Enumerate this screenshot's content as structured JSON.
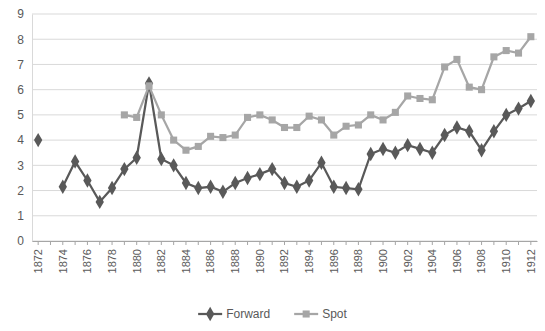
{
  "chart_data": {
    "type": "line",
    "categories": [
      "1872",
      null,
      "1874",
      null,
      "1876",
      null,
      "1878",
      null,
      "1880",
      null,
      "1882",
      null,
      "1884",
      null,
      "1886",
      null,
      "1888",
      null,
      "1890",
      null,
      "1892",
      null,
      "1894",
      null,
      "1896",
      null,
      "1898",
      null,
      "1900",
      null,
      "1902",
      null,
      "1904",
      null,
      "1906",
      null,
      "1908",
      null,
      "1910",
      null,
      "1912"
    ],
    "series": [
      {
        "name": "Forward",
        "color": "#595959",
        "marker": "diamond",
        "values": [
          4.0,
          null,
          2.15,
          3.15,
          2.4,
          1.55,
          2.1,
          2.85,
          3.3,
          6.25,
          3.25,
          3.0,
          2.3,
          2.1,
          2.15,
          1.95,
          2.3,
          2.5,
          2.65,
          2.85,
          2.3,
          2.15,
          2.4,
          3.1,
          2.15,
          2.1,
          2.05,
          3.45,
          3.65,
          3.5,
          3.8,
          3.65,
          3.5,
          4.2,
          4.5,
          4.35,
          3.6,
          4.35,
          5.0,
          5.25,
          5.55
        ]
      },
      {
        "name": "Spot",
        "color": "#a6a6a6",
        "marker": "square",
        "values": [
          null,
          null,
          null,
          null,
          null,
          null,
          null,
          5.0,
          4.9,
          6.15,
          5.0,
          4.0,
          3.6,
          3.75,
          4.15,
          4.1,
          4.2,
          4.9,
          5.0,
          4.8,
          4.5,
          4.5,
          4.95,
          4.8,
          4.2,
          4.55,
          4.6,
          5.0,
          4.8,
          5.1,
          5.75,
          5.65,
          5.6,
          6.9,
          7.2,
          6.1,
          6.0,
          7.3,
          7.55,
          7.45,
          8.1
        ]
      }
    ],
    "ylim": [
      0,
      9
    ],
    "yticks": [
      0,
      1,
      2,
      3,
      4,
      5,
      6,
      7,
      8,
      9
    ],
    "grid": true,
    "legend": "bottom"
  }
}
